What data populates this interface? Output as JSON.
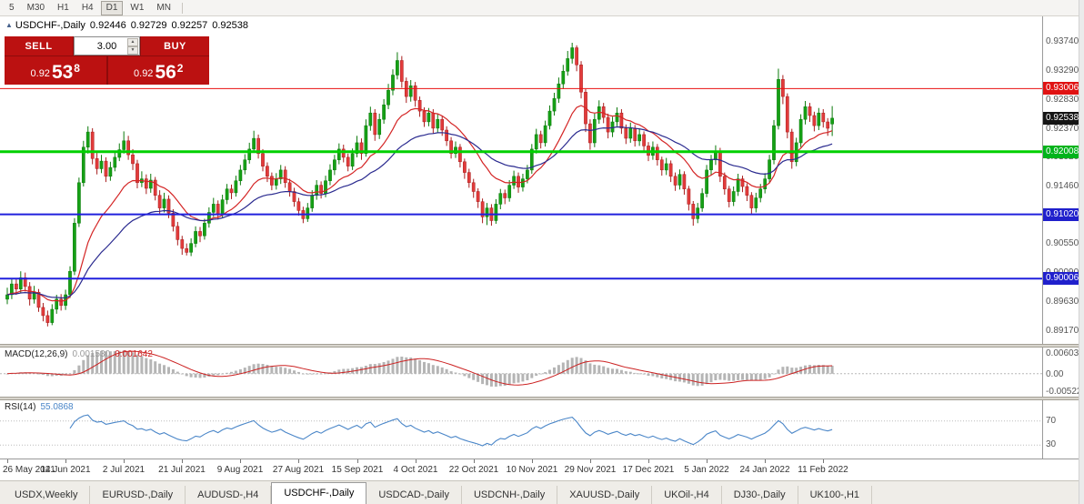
{
  "icons": {
    "collapse_triangle": "▲",
    "spin_up": "▲",
    "spin_down": "▼"
  },
  "toolbar": {
    "timeframes": [
      "5",
      "M30",
      "H1",
      "H4",
      "D1",
      "W1",
      "MN"
    ],
    "active_timeframe": "D1"
  },
  "chart": {
    "title": "USDCHF-,Daily",
    "ohlc": {
      "open": "0.92446",
      "high": "0.92729",
      "low": "0.92257",
      "close": "0.92538"
    },
    "trade_panel": {
      "sell_label": "SELL",
      "buy_label": "BUY",
      "volume": "3.00",
      "sell_price": {
        "prefix": "0.92",
        "big": "53",
        "sup": "8"
      },
      "buy_price": {
        "prefix": "0.92",
        "big": "56",
        "sup": "2"
      }
    }
  },
  "price_axis": {
    "labels": [
      "0.93740",
      "0.93290",
      "0.92830",
      "0.92370",
      "0.91920",
      "0.91460",
      "0.91010",
      "0.90550",
      "0.90090",
      "0.89630",
      "0.89170"
    ],
    "badges": [
      {
        "text": "0.93006",
        "color": "#e01212",
        "price": 0.93006
      },
      {
        "text": "0.92538",
        "color": "#141414",
        "price": 0.92538
      },
      {
        "text": "0.92008",
        "color": "#00b31b",
        "price": 0.92008
      },
      {
        "text": "0.91020",
        "color": "#2020cc",
        "price": 0.9102
      },
      {
        "text": "0.90006",
        "color": "#2020cc",
        "price": 0.90006
      }
    ]
  },
  "levels": [
    {
      "price": 0.93006,
      "color": "#e81010",
      "width": 1
    },
    {
      "price": 0.92008,
      "color": "#00d000",
      "width": 3
    },
    {
      "price": 0.9102,
      "color": "#2020dd",
      "width": 2
    },
    {
      "price": 0.90006,
      "color": "#2020dd",
      "width": 2
    }
  ],
  "macd": {
    "label": "MACD(12,26,9)",
    "value_main": "0.001530",
    "value_signal": "0.001642",
    "axis": [
      {
        "text": "0.006038",
        "value": 0.006038
      },
      {
        "text": "0.00",
        "value": 0
      },
      {
        "text": "-0.005224",
        "value": -0.005224
      }
    ],
    "colors": {
      "histogram": "#b5b5b5",
      "signal": "#cc2222"
    }
  },
  "rsi": {
    "label": "RSI(14)",
    "value": "55.0868",
    "levels": [
      70,
      30
    ],
    "color": "#4a86c8"
  },
  "tabs": [
    "USDX,Weekly",
    "EURUSD-,Daily",
    "AUDUSD-,H4",
    "USDCHF-,Daily",
    "USDCAD-,Daily",
    "USDCNH-,Daily",
    "XAUUSD-,Daily",
    "UKOil-,H4",
    "DJ30-,Daily",
    "UK100-,H1"
  ],
  "active_tab": "USDCHF-,Daily",
  "chart_data": {
    "type": "candlestick",
    "symbol": "USDCHF-",
    "timeframe": "Daily",
    "ylim": [
      0.8906,
      0.9406
    ],
    "x_tick_step": 13,
    "x_tick_labels": [
      "26 May 2021",
      "14 Jun 2021",
      "2 Jul 2021",
      "21 Jul 2021",
      "9 Aug 2021",
      "27 Aug 2021",
      "15 Sep 2021",
      "4 Oct 2021",
      "22 Oct 2021",
      "10 Nov 2021",
      "29 Nov 2021",
      "17 Dec 2021",
      "5 Jan 2022",
      "24 Jan 2022",
      "11 Feb 2022"
    ],
    "colors": {
      "up_fill": "#15a015",
      "up_stroke": "#0b7a0b",
      "down_fill": "#e23b3b",
      "down_stroke": "#a81d1d"
    },
    "overlays": [
      {
        "name": "ma-fast",
        "type": "ema",
        "period": 15,
        "color": "#d42525"
      },
      {
        "name": "ma-slow",
        "type": "ema",
        "period": 34,
        "color": "#2a2a8f"
      }
    ],
    "candles": [
      [
        0.8968,
        0.8986,
        0.896,
        0.8975
      ],
      [
        0.8975,
        0.9001,
        0.8968,
        0.8992
      ],
      [
        0.8992,
        0.9,
        0.8975,
        0.8984
      ],
      [
        0.8984,
        0.9012,
        0.8978,
        0.9002
      ],
      [
        0.9002,
        0.901,
        0.898,
        0.8988
      ],
      [
        0.8988,
        0.8995,
        0.8958,
        0.8968
      ],
      [
        0.8968,
        0.8989,
        0.8961,
        0.8979
      ],
      [
        0.8979,
        0.8984,
        0.8948,
        0.8955
      ],
      [
        0.8955,
        0.8962,
        0.8933,
        0.8942
      ],
      [
        0.8942,
        0.895,
        0.8925,
        0.8931
      ],
      [
        0.8931,
        0.896,
        0.8927,
        0.8952
      ],
      [
        0.8952,
        0.8975,
        0.8945,
        0.8968
      ],
      [
        0.8968,
        0.8976,
        0.895,
        0.8958
      ],
      [
        0.8958,
        0.8983,
        0.8951,
        0.8975
      ],
      [
        0.8975,
        0.902,
        0.897,
        0.9012
      ],
      [
        0.9012,
        0.9096,
        0.9006,
        0.9088
      ],
      [
        0.9088,
        0.916,
        0.9082,
        0.9152
      ],
      [
        0.9152,
        0.9218,
        0.9146,
        0.9208
      ],
      [
        0.9208,
        0.9241,
        0.9198,
        0.9232
      ],
      [
        0.9232,
        0.9238,
        0.9181,
        0.919
      ],
      [
        0.919,
        0.9199,
        0.9165,
        0.9174
      ],
      [
        0.9174,
        0.9196,
        0.9167,
        0.9186
      ],
      [
        0.9186,
        0.9192,
        0.9153,
        0.9162
      ],
      [
        0.9162,
        0.9185,
        0.9155,
        0.9176
      ],
      [
        0.9176,
        0.92,
        0.917,
        0.9192
      ],
      [
        0.9192,
        0.9214,
        0.9186,
        0.9204
      ],
      [
        0.9204,
        0.9233,
        0.9198,
        0.9218
      ],
      [
        0.9218,
        0.9226,
        0.9188,
        0.9196
      ],
      [
        0.9196,
        0.9205,
        0.9172,
        0.9182
      ],
      [
        0.9182,
        0.9188,
        0.9143,
        0.9152
      ],
      [
        0.9152,
        0.917,
        0.9145,
        0.9158
      ],
      [
        0.9158,
        0.9165,
        0.9134,
        0.9143
      ],
      [
        0.9143,
        0.9166,
        0.9136,
        0.9156
      ],
      [
        0.9156,
        0.9161,
        0.9124,
        0.9132
      ],
      [
        0.9132,
        0.914,
        0.9103,
        0.9112
      ],
      [
        0.9112,
        0.9136,
        0.9105,
        0.9126
      ],
      [
        0.9126,
        0.9132,
        0.9096,
        0.9104
      ],
      [
        0.9104,
        0.911,
        0.9075,
        0.9083
      ],
      [
        0.9083,
        0.909,
        0.9053,
        0.9062
      ],
      [
        0.9062,
        0.9068,
        0.9038,
        0.9048
      ],
      [
        0.9048,
        0.9056,
        0.9037,
        0.9042
      ],
      [
        0.9042,
        0.9064,
        0.9036,
        0.9056
      ],
      [
        0.9056,
        0.9083,
        0.905,
        0.9075
      ],
      [
        0.9075,
        0.9082,
        0.9058,
        0.9068
      ],
      [
        0.9068,
        0.9095,
        0.9062,
        0.9088
      ],
      [
        0.9088,
        0.9113,
        0.9081,
        0.9105
      ],
      [
        0.9105,
        0.9128,
        0.9098,
        0.9118
      ],
      [
        0.9118,
        0.9124,
        0.9094,
        0.9102
      ],
      [
        0.9102,
        0.9133,
        0.9096,
        0.9125
      ],
      [
        0.9125,
        0.915,
        0.9118,
        0.9142
      ],
      [
        0.9142,
        0.9149,
        0.9126,
        0.9136
      ],
      [
        0.9136,
        0.9163,
        0.913,
        0.9155
      ],
      [
        0.9155,
        0.918,
        0.9148,
        0.9172
      ],
      [
        0.9172,
        0.9197,
        0.9165,
        0.9188
      ],
      [
        0.9188,
        0.9215,
        0.9182,
        0.9205
      ],
      [
        0.9205,
        0.9234,
        0.9199,
        0.9222
      ],
      [
        0.9222,
        0.9228,
        0.919,
        0.9198
      ],
      [
        0.9198,
        0.9205,
        0.917,
        0.9178
      ],
      [
        0.9178,
        0.9184,
        0.9153,
        0.9162
      ],
      [
        0.9162,
        0.9168,
        0.914,
        0.9148
      ],
      [
        0.9148,
        0.9167,
        0.9141,
        0.9158
      ],
      [
        0.9158,
        0.918,
        0.915,
        0.9172
      ],
      [
        0.9172,
        0.9178,
        0.9144,
        0.9152
      ],
      [
        0.9152,
        0.9158,
        0.913,
        0.9138
      ],
      [
        0.9138,
        0.9144,
        0.9114,
        0.9122
      ],
      [
        0.9122,
        0.9128,
        0.91,
        0.9108
      ],
      [
        0.9108,
        0.9114,
        0.9088,
        0.9095
      ],
      [
        0.9095,
        0.912,
        0.909,
        0.9112
      ],
      [
        0.9112,
        0.914,
        0.9106,
        0.9132
      ],
      [
        0.9132,
        0.9156,
        0.9125,
        0.9148
      ],
      [
        0.9148,
        0.9154,
        0.9127,
        0.9135
      ],
      [
        0.9135,
        0.9163,
        0.9129,
        0.9155
      ],
      [
        0.9155,
        0.9181,
        0.9148,
        0.9172
      ],
      [
        0.9172,
        0.9196,
        0.9164,
        0.9188
      ],
      [
        0.9188,
        0.9214,
        0.9181,
        0.9205
      ],
      [
        0.9205,
        0.9212,
        0.9184,
        0.9192
      ],
      [
        0.9192,
        0.9198,
        0.917,
        0.9178
      ],
      [
        0.9178,
        0.9206,
        0.9172,
        0.9198
      ],
      [
        0.9198,
        0.9226,
        0.9192,
        0.9215
      ],
      [
        0.9215,
        0.9222,
        0.9188,
        0.9198
      ],
      [
        0.9198,
        0.9252,
        0.9193,
        0.9242
      ],
      [
        0.9242,
        0.9272,
        0.9234,
        0.9262
      ],
      [
        0.9262,
        0.9268,
        0.9218,
        0.9228
      ],
      [
        0.9228,
        0.9261,
        0.9221,
        0.9252
      ],
      [
        0.9252,
        0.9284,
        0.9245,
        0.9275
      ],
      [
        0.9275,
        0.9308,
        0.9268,
        0.9298
      ],
      [
        0.9298,
        0.9331,
        0.929,
        0.9322
      ],
      [
        0.9322,
        0.9358,
        0.9315,
        0.9345
      ],
      [
        0.9345,
        0.9352,
        0.9302,
        0.9312
      ],
      [
        0.9312,
        0.9318,
        0.9278,
        0.9288
      ],
      [
        0.9288,
        0.9314,
        0.928,
        0.9305
      ],
      [
        0.9305,
        0.9311,
        0.9272,
        0.9282
      ],
      [
        0.9282,
        0.9288,
        0.9256,
        0.9265
      ],
      [
        0.9265,
        0.9271,
        0.924,
        0.9248
      ],
      [
        0.9248,
        0.927,
        0.9241,
        0.9262
      ],
      [
        0.9262,
        0.9268,
        0.923,
        0.9238
      ],
      [
        0.9238,
        0.926,
        0.9231,
        0.9252
      ],
      [
        0.9252,
        0.9257,
        0.9226,
        0.9235
      ],
      [
        0.9235,
        0.9241,
        0.921,
        0.9218
      ],
      [
        0.9218,
        0.9224,
        0.919,
        0.9198
      ],
      [
        0.9198,
        0.9217,
        0.9191,
        0.9208
      ],
      [
        0.9208,
        0.9213,
        0.9176,
        0.9185
      ],
      [
        0.9185,
        0.919,
        0.9158,
        0.9168
      ],
      [
        0.9168,
        0.9174,
        0.9144,
        0.9152
      ],
      [
        0.9152,
        0.9158,
        0.9128,
        0.9138
      ],
      [
        0.9138,
        0.9143,
        0.9112,
        0.9122
      ],
      [
        0.9122,
        0.9127,
        0.9088,
        0.9098
      ],
      [
        0.9098,
        0.912,
        0.9085,
        0.9112
      ],
      [
        0.9112,
        0.9118,
        0.9084,
        0.9092
      ],
      [
        0.9092,
        0.9126,
        0.9087,
        0.9118
      ],
      [
        0.9118,
        0.9142,
        0.911,
        0.9135
      ],
      [
        0.9135,
        0.9141,
        0.9118,
        0.9128
      ],
      [
        0.9128,
        0.9156,
        0.9122,
        0.9148
      ],
      [
        0.9148,
        0.9171,
        0.9142,
        0.9162
      ],
      [
        0.9162,
        0.9168,
        0.9136,
        0.9145
      ],
      [
        0.9145,
        0.9166,
        0.9138,
        0.9158
      ],
      [
        0.9158,
        0.918,
        0.9151,
        0.9172
      ],
      [
        0.9172,
        0.9213,
        0.9166,
        0.9205
      ],
      [
        0.9205,
        0.9237,
        0.9198,
        0.9228
      ],
      [
        0.9228,
        0.9234,
        0.9206,
        0.9215
      ],
      [
        0.9215,
        0.925,
        0.9209,
        0.9242
      ],
      [
        0.9242,
        0.9274,
        0.9236,
        0.9265
      ],
      [
        0.9265,
        0.9294,
        0.9258,
        0.9285
      ],
      [
        0.9285,
        0.9318,
        0.9278,
        0.9308
      ],
      [
        0.9308,
        0.9338,
        0.93,
        0.9328
      ],
      [
        0.9328,
        0.936,
        0.9321,
        0.9348
      ],
      [
        0.9348,
        0.9373,
        0.934,
        0.9365
      ],
      [
        0.9365,
        0.9369,
        0.9328,
        0.9338
      ],
      [
        0.9338,
        0.9344,
        0.9285,
        0.9295
      ],
      [
        0.9295,
        0.93,
        0.9232,
        0.9245
      ],
      [
        0.9245,
        0.9252,
        0.9204,
        0.9215
      ],
      [
        0.9215,
        0.9261,
        0.9208,
        0.9252
      ],
      [
        0.9252,
        0.9282,
        0.9245,
        0.9272
      ],
      [
        0.9272,
        0.9278,
        0.9246,
        0.9255
      ],
      [
        0.9255,
        0.9261,
        0.9222,
        0.9232
      ],
      [
        0.9232,
        0.9256,
        0.9224,
        0.9248
      ],
      [
        0.9248,
        0.9271,
        0.9241,
        0.9262
      ],
      [
        0.9262,
        0.9268,
        0.9229,
        0.9238
      ],
      [
        0.9238,
        0.9244,
        0.9213,
        0.9222
      ],
      [
        0.9222,
        0.9247,
        0.9215,
        0.9238
      ],
      [
        0.9238,
        0.9243,
        0.9209,
        0.9218
      ],
      [
        0.9218,
        0.9237,
        0.921,
        0.9228
      ],
      [
        0.9228,
        0.9233,
        0.9201,
        0.921
      ],
      [
        0.921,
        0.9216,
        0.9186,
        0.9195
      ],
      [
        0.9195,
        0.9217,
        0.9188,
        0.9208
      ],
      [
        0.9208,
        0.9213,
        0.9179,
        0.9188
      ],
      [
        0.9188,
        0.9193,
        0.9163,
        0.9172
      ],
      [
        0.9172,
        0.9191,
        0.9164,
        0.9182
      ],
      [
        0.9182,
        0.9187,
        0.9153,
        0.9162
      ],
      [
        0.9162,
        0.9168,
        0.9139,
        0.9148
      ],
      [
        0.9148,
        0.9173,
        0.9141,
        0.9165
      ],
      [
        0.9165,
        0.917,
        0.9133,
        0.9142
      ],
      [
        0.9142,
        0.9147,
        0.9108,
        0.9118
      ],
      [
        0.9118,
        0.9123,
        0.9084,
        0.9095
      ],
      [
        0.9095,
        0.912,
        0.9088,
        0.9112
      ],
      [
        0.9112,
        0.9143,
        0.9106,
        0.9135
      ],
      [
        0.9135,
        0.918,
        0.9129,
        0.9172
      ],
      [
        0.9172,
        0.9196,
        0.9163,
        0.9188
      ],
      [
        0.9188,
        0.9211,
        0.918,
        0.9202
      ],
      [
        0.9202,
        0.9207,
        0.9153,
        0.9162
      ],
      [
        0.9162,
        0.9168,
        0.9133,
        0.9142
      ],
      [
        0.9142,
        0.9147,
        0.9113,
        0.9122
      ],
      [
        0.9122,
        0.9146,
        0.9115,
        0.9138
      ],
      [
        0.9138,
        0.9166,
        0.9131,
        0.9158
      ],
      [
        0.9158,
        0.9163,
        0.9137,
        0.9146
      ],
      [
        0.9146,
        0.9151,
        0.9123,
        0.9132
      ],
      [
        0.9132,
        0.9137,
        0.9103,
        0.9112
      ],
      [
        0.9112,
        0.9136,
        0.9105,
        0.9128
      ],
      [
        0.9128,
        0.915,
        0.9121,
        0.9142
      ],
      [
        0.9142,
        0.9167,
        0.9135,
        0.9158
      ],
      [
        0.9158,
        0.9196,
        0.9151,
        0.9188
      ],
      [
        0.9188,
        0.9251,
        0.9181,
        0.9242
      ],
      [
        0.9242,
        0.9332,
        0.9236,
        0.9315
      ],
      [
        0.9315,
        0.9322,
        0.9276,
        0.9288
      ],
      [
        0.9288,
        0.9293,
        0.9222,
        0.9232
      ],
      [
        0.9232,
        0.9237,
        0.9174,
        0.9185
      ],
      [
        0.9185,
        0.9223,
        0.9178,
        0.9215
      ],
      [
        0.9215,
        0.926,
        0.9208,
        0.9252
      ],
      [
        0.9252,
        0.9281,
        0.9244,
        0.9272
      ],
      [
        0.9272,
        0.9278,
        0.9248,
        0.9258
      ],
      [
        0.9258,
        0.9264,
        0.9233,
        0.9242
      ],
      [
        0.9242,
        0.927,
        0.9235,
        0.9262
      ],
      [
        0.9262,
        0.9268,
        0.9239,
        0.9248
      ],
      [
        0.9248,
        0.9254,
        0.9226,
        0.9238
      ],
      [
        0.92446,
        0.92729,
        0.92257,
        0.92538
      ]
    ]
  }
}
